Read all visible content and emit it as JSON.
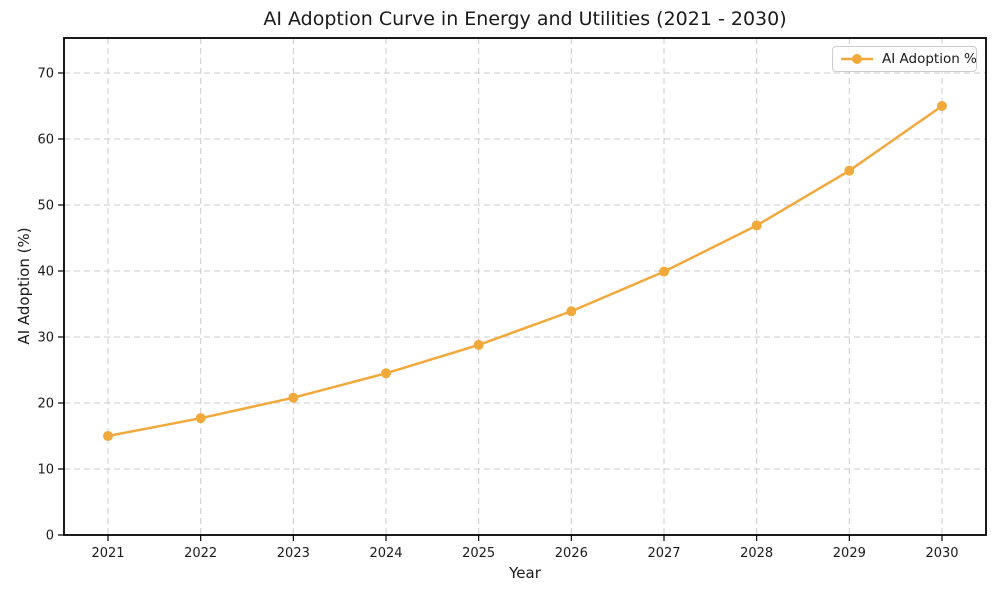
{
  "chart_data": {
    "type": "line",
    "title": "AI Adoption Curve in Energy and Utilities (2021 - 2030)",
    "xlabel": "Year",
    "ylabel": "AI Adoption (%)",
    "categories": [
      "2021",
      "2022",
      "2023",
      "2024",
      "2025",
      "2026",
      "2027",
      "2028",
      "2029",
      "2030"
    ],
    "series": [
      {
        "name": "AI Adoption %",
        "color": "#F2A93C",
        "marker": "circle",
        "values": [
          15.0,
          17.7,
          20.8,
          24.5,
          28.8,
          33.9,
          39.9,
          46.9,
          55.2,
          65.0
        ]
      }
    ],
    "y_ticks": [
      0,
      10,
      20,
      30,
      40,
      50,
      60,
      70
    ],
    "ylim": [
      0,
      75.3
    ],
    "grid": {
      "show": true,
      "style": "dashed",
      "color": "#CCCCCC"
    },
    "legend": {
      "position": "upper-right",
      "entries": [
        "AI Adoption %"
      ]
    },
    "colors": {
      "background": "#FFFFFF",
      "spine": "#000000",
      "text": "#1A1A1A"
    }
  }
}
